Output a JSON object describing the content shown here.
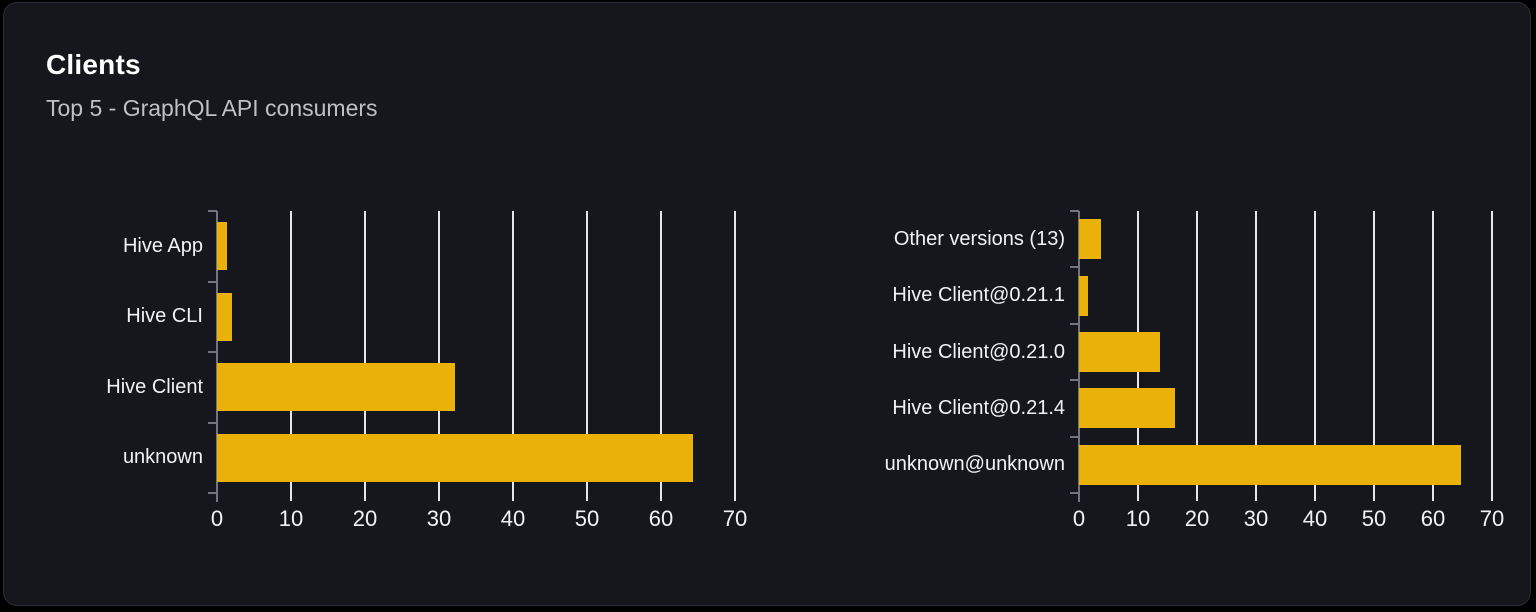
{
  "header": {
    "title": "Clients",
    "subtitle": "Top 5 - GraphQL API consumers"
  },
  "colors": {
    "page_background": "#000000",
    "card_background": "#15171c",
    "card_border": "#2b2e34",
    "bar": "#e9b10a",
    "gridline": "#e3e6ea",
    "axis": "#71757d",
    "label_text": "#f1f2f4",
    "title_text": "#ffffff",
    "subtitle_text": "#bdc0c5"
  },
  "chart_data": [
    {
      "type": "bar",
      "orientation": "horizontal",
      "categories": [
        "Hive App",
        "Hive CLI",
        "Hive Client",
        "unknown"
      ],
      "values": [
        1.4,
        2.0,
        32.2,
        64.3
      ],
      "xlim": [
        0,
        70
      ],
      "xticks": [
        0,
        10,
        20,
        30,
        40,
        50,
        60,
        70
      ],
      "grid": true,
      "legend": false,
      "bar_color": "#e9b10a",
      "title": "",
      "xlabel": "",
      "ylabel": ""
    },
    {
      "type": "bar",
      "orientation": "horizontal",
      "categories": [
        "Other versions (13)",
        "Hive Client@0.21.1",
        "Hive Client@0.21.0",
        "Hive Client@0.21.4",
        "unknown@unknown"
      ],
      "values": [
        3.7,
        1.6,
        13.7,
        16.3,
        64.7
      ],
      "xlim": [
        0,
        70
      ],
      "xticks": [
        0,
        10,
        20,
        30,
        40,
        50,
        60,
        70
      ],
      "grid": true,
      "legend": false,
      "bar_color": "#e9b10a",
      "title": "",
      "xlabel": "",
      "ylabel": ""
    }
  ]
}
